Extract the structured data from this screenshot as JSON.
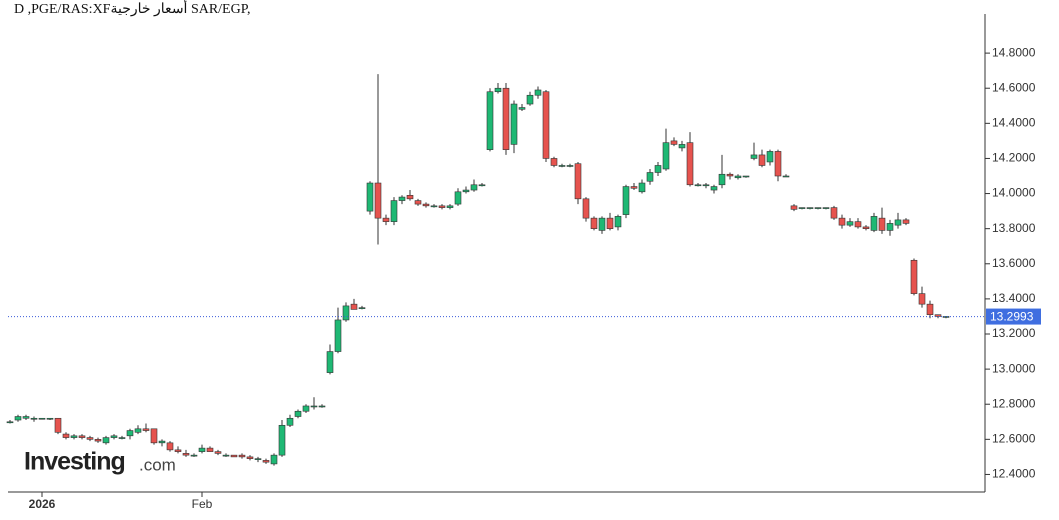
{
  "chart_data": {
    "type": "candlestick",
    "title": "D ,PGE/RAS:XFأسعار خارجية SAR/EGP,",
    "logo": {
      "brand": "Investing",
      "suffix": ".com"
    },
    "categories": [
      null,
      null,
      null,
      null,
      "2026",
      null,
      null,
      null,
      null,
      null,
      null,
      null,
      null,
      null,
      null,
      null,
      null,
      null,
      null,
      null,
      null,
      null,
      null,
      null,
      "Feb",
      null,
      null,
      null,
      null,
      null,
      null,
      null,
      null,
      null,
      null,
      null,
      null,
      null,
      null,
      null,
      null,
      null,
      null,
      null,
      null,
      null,
      null,
      null,
      null,
      null,
      null,
      null,
      null,
      null,
      null,
      null,
      null,
      null,
      null,
      null,
      null,
      null,
      null,
      null,
      null,
      null,
      null,
      null,
      null,
      null,
      null,
      null,
      null,
      null,
      null,
      null,
      null,
      null,
      null,
      null,
      null,
      null,
      null,
      null,
      null,
      null,
      null,
      null,
      null,
      null,
      null,
      null,
      null,
      null,
      null,
      null,
      null,
      null,
      null,
      null,
      null,
      null,
      null,
      null,
      null,
      null,
      null,
      null,
      null,
      null,
      null,
      null,
      null,
      null,
      null,
      null,
      null,
      null
    ],
    "open": [
      12.7,
      12.71,
      12.72,
      12.72,
      12.72,
      12.72,
      12.72,
      12.63,
      12.61,
      12.62,
      12.61,
      12.6,
      12.58,
      12.61,
      12.61,
      12.62,
      12.64,
      12.66,
      12.66,
      12.58,
      12.58,
      12.54,
      12.52,
      12.51,
      12.53,
      12.55,
      12.53,
      12.51,
      12.51,
      12.51,
      12.5,
      12.49,
      12.48,
      12.46,
      12.51,
      12.68,
      12.73,
      12.76,
      12.79,
      12.79,
      12.98,
      13.1,
      13.28,
      13.37,
      13.35,
      13.9,
      14.06,
      13.86,
      13.84,
      13.96,
      13.99,
      13.96,
      13.94,
      13.93,
      13.93,
      13.92,
      13.94,
      14.01,
      14.02,
      14.05,
      14.25,
      14.58,
      14.6,
      14.28,
      14.48,
      14.51,
      14.56,
      14.58,
      14.2,
      14.16,
      14.16,
      14.17,
      13.97,
      13.86,
      13.79,
      13.86,
      13.81,
      13.88,
      14.04,
      14.01,
      14.07,
      14.12,
      14.14,
      14.3,
      14.26,
      14.29,
      14.05,
      14.05,
      14.02,
      14.05,
      14.11,
      14.09,
      14.1,
      14.2,
      14.22,
      14.18,
      14.24,
      14.1,
      13.93,
      13.92,
      13.92,
      13.92,
      13.92,
      13.92,
      13.86,
      13.82,
      13.84,
      13.81,
      13.79,
      13.86,
      13.79,
      13.82,
      13.85,
      13.62,
      13.43,
      13.37,
      13.31,
      13.3
    ],
    "high": [
      12.71,
      12.74,
      12.74,
      12.73,
      12.72,
      12.72,
      12.72,
      12.64,
      12.63,
      12.63,
      12.62,
      12.61,
      12.62,
      12.63,
      12.62,
      12.66,
      12.68,
      12.69,
      12.66,
      12.6,
      12.59,
      12.56,
      12.54,
      12.52,
      12.57,
      12.56,
      12.54,
      12.52,
      12.51,
      12.52,
      12.51,
      12.5,
      12.49,
      12.52,
      12.71,
      12.74,
      12.77,
      12.8,
      12.84,
      12.8,
      13.14,
      13.35,
      13.38,
      13.4,
      13.36,
      14.07,
      14.68,
      13.88,
      13.98,
      13.99,
      14.02,
      13.97,
      13.95,
      13.94,
      13.94,
      13.94,
      14.03,
      14.04,
      14.08,
      14.06,
      14.6,
      14.63,
      14.63,
      14.53,
      14.51,
      14.58,
      14.61,
      14.59,
      14.21,
      14.17,
      14.17,
      14.18,
      13.98,
      13.87,
      13.87,
      13.89,
      13.88,
      14.05,
      14.06,
      14.08,
      14.14,
      14.18,
      14.37,
      14.32,
      14.3,
      14.35,
      14.06,
      14.06,
      14.05,
      14.22,
      14.12,
      14.11,
      14.1,
      14.29,
      14.25,
      14.25,
      14.25,
      14.11,
      13.94,
      13.92,
      13.92,
      13.92,
      13.92,
      13.93,
      13.88,
      13.86,
      13.86,
      13.82,
      13.89,
      13.92,
      13.85,
      13.89,
      13.86,
      13.63,
      13.47,
      13.39,
      13.31,
      13.3
    ],
    "low": [
      12.69,
      12.7,
      12.71,
      12.7,
      12.72,
      12.71,
      12.63,
      12.6,
      12.6,
      12.6,
      12.59,
      12.58,
      12.57,
      12.6,
      12.6,
      12.6,
      12.63,
      12.64,
      12.57,
      12.56,
      12.53,
      12.52,
      12.5,
      12.5,
      12.52,
      12.53,
      12.51,
      12.5,
      12.5,
      12.49,
      12.48,
      12.47,
      12.46,
      12.45,
      12.5,
      12.67,
      12.72,
      12.75,
      12.77,
      12.78,
      12.97,
      13.09,
      13.27,
      13.34,
      13.34,
      13.88,
      13.71,
      13.82,
      13.82,
      13.94,
      13.96,
      13.93,
      13.92,
      13.92,
      13.91,
      13.91,
      13.93,
      14.0,
      14.01,
      14.04,
      14.24,
      14.57,
      14.22,
      14.23,
      14.47,
      14.5,
      14.54,
      14.18,
      14.15,
      14.15,
      14.15,
      13.94,
      13.84,
      13.79,
      13.77,
      13.79,
      13.79,
      13.86,
      14.02,
      14.0,
      14.05,
      14.1,
      14.13,
      14.27,
      14.24,
      14.04,
      14.04,
      14.03,
      14.0,
      14.03,
      14.08,
      14.08,
      14.09,
      14.19,
      14.15,
      14.16,
      14.07,
      14.1,
      13.9,
      13.91,
      13.91,
      13.91,
      13.91,
      13.85,
      13.8,
      13.81,
      13.8,
      13.79,
      13.78,
      13.77,
      13.76,
      13.8,
      13.82,
      13.42,
      13.35,
      13.29,
      13.29,
      13.29
    ],
    "close": [
      12.7,
      12.73,
      12.73,
      12.72,
      12.72,
      12.72,
      12.64,
      12.61,
      12.62,
      12.61,
      12.6,
      12.59,
      12.61,
      12.62,
      12.61,
      12.65,
      12.66,
      12.65,
      12.58,
      12.59,
      12.54,
      12.53,
      12.51,
      12.51,
      12.55,
      12.53,
      12.52,
      12.51,
      12.5,
      12.5,
      12.49,
      12.49,
      12.47,
      12.51,
      12.68,
      12.72,
      12.76,
      12.79,
      12.79,
      12.79,
      13.1,
      13.28,
      13.36,
      13.34,
      13.35,
      14.06,
      13.86,
      13.84,
      13.96,
      13.98,
      13.97,
      13.94,
      13.93,
      13.93,
      13.92,
      13.93,
      14.01,
      14.02,
      14.05,
      14.05,
      14.58,
      14.6,
      14.25,
      14.51,
      14.49,
      14.56,
      14.59,
      14.2,
      14.16,
      14.16,
      14.16,
      13.97,
      13.86,
      13.8,
      13.86,
      13.8,
      13.87,
      14.04,
      14.03,
      14.06,
      14.12,
      14.16,
      14.29,
      14.28,
      14.28,
      14.05,
      14.05,
      14.05,
      14.04,
      14.11,
      14.1,
      14.1,
      14.1,
      14.22,
      14.16,
      14.24,
      14.1,
      14.1,
      13.91,
      13.92,
      13.92,
      13.92,
      13.92,
      13.86,
      13.82,
      13.84,
      13.81,
      13.8,
      13.87,
      13.79,
      13.83,
      13.85,
      13.83,
      13.43,
      13.37,
      13.31,
      13.3,
      13.3
    ],
    "up_color": "#1fb874",
    "down_color": "#e6534e",
    "last_price": {
      "value": 13.2993,
      "label": "13.2993"
    },
    "ylim": [
      12.3,
      15.0
    ],
    "yticks": [
      {
        "value": 12.4,
        "label": "12.4000"
      },
      {
        "value": 12.6,
        "label": "12.6000"
      },
      {
        "value": 12.8,
        "label": "12.8000"
      },
      {
        "value": 13.0,
        "label": "13.0000"
      },
      {
        "value": 13.2,
        "label": "13.2000"
      },
      {
        "value": 13.4,
        "label": "13.4000"
      },
      {
        "value": 13.6,
        "label": "13.6000"
      },
      {
        "value": 13.8,
        "label": "13.8000"
      },
      {
        "value": 14.0,
        "label": "14.0000"
      },
      {
        "value": 14.2,
        "label": "14.2000"
      },
      {
        "value": 14.4,
        "label": "14.4000"
      },
      {
        "value": 14.6,
        "label": "14.6000"
      },
      {
        "value": 14.8,
        "label": "14.8000"
      }
    ]
  }
}
